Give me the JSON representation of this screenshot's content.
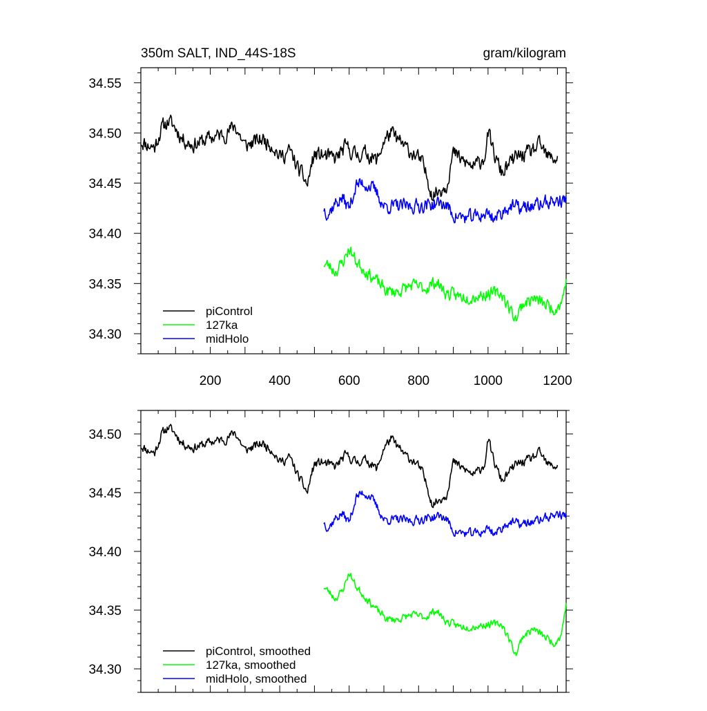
{
  "chart_data": [
    {
      "type": "line",
      "title": "350m SALT, IND_44S-18S",
      "units": "gram/kilogram",
      "xlim": [
        0,
        1225
      ],
      "ylim": [
        34.28,
        34.565
      ],
      "x_ticks": [
        200,
        400,
        600,
        800,
        1000,
        1200
      ],
      "x_tick_labels": [
        "200",
        "400",
        "600",
        "800",
        "1000",
        "1200"
      ],
      "y_ticks": [
        34.3,
        34.35,
        34.4,
        34.45,
        34.5,
        34.55
      ],
      "y_tick_labels": [
        "34.30",
        "34.35",
        "34.40",
        "34.45",
        "34.50",
        "34.55"
      ],
      "legend": {
        "position": "bottom-left",
        "entries": [
          "piControl",
          "127ka",
          "midHolo"
        ]
      },
      "series": [
        {
          "name": "piControl",
          "color": "#000000",
          "noise": 0.012,
          "seed": 11,
          "x": [
            0,
            20,
            40,
            60,
            80,
            100,
            120,
            150,
            200,
            250,
            270,
            300,
            350,
            380,
            400,
            430,
            450,
            470,
            480,
            490,
            500,
            520,
            560,
            590,
            620,
            650,
            680,
            700,
            720,
            760,
            790,
            810,
            830,
            840,
            860,
            880,
            900,
            930,
            960,
            990,
            1000,
            1020,
            1040,
            1080,
            1120,
            1150,
            1170,
            1200
          ],
          "values": [
            34.492,
            34.488,
            34.486,
            34.505,
            34.512,
            34.505,
            34.494,
            34.488,
            34.495,
            34.5,
            34.508,
            34.487,
            34.494,
            34.488,
            34.476,
            34.482,
            34.466,
            34.455,
            34.448,
            34.466,
            34.478,
            34.478,
            34.474,
            34.486,
            34.478,
            34.48,
            34.472,
            34.492,
            34.5,
            34.486,
            34.478,
            34.47,
            34.45,
            34.438,
            34.443,
            34.448,
            34.48,
            34.471,
            34.466,
            34.476,
            34.5,
            34.476,
            34.46,
            34.476,
            34.48,
            34.488,
            34.476,
            34.474
          ]
        },
        {
          "name": "127ka",
          "color": "#00ff00",
          "noise": 0.01,
          "seed": 23,
          "x": [
            527,
            540,
            560,
            580,
            600,
            620,
            650,
            680,
            710,
            740,
            780,
            820,
            850,
            880,
            920,
            960,
            1000,
            1040,
            1060,
            1080,
            1100,
            1130,
            1160,
            1190,
            1210,
            1225
          ],
          "values": [
            34.37,
            34.368,
            34.362,
            34.37,
            34.385,
            34.372,
            34.362,
            34.352,
            34.342,
            34.342,
            34.348,
            34.345,
            34.352,
            34.34,
            34.337,
            34.337,
            34.34,
            34.34,
            34.326,
            34.315,
            34.33,
            34.335,
            34.33,
            34.325,
            34.33,
            34.352
          ]
        },
        {
          "name": "midHolo",
          "color": "#0000ff",
          "noise": 0.011,
          "seed": 37,
          "x": [
            527,
            540,
            560,
            580,
            600,
            620,
            640,
            660,
            680,
            700,
            740,
            780,
            820,
            860,
            880,
            900,
            940,
            980,
            1000,
            1020,
            1060,
            1100,
            1140,
            1180,
            1200,
            1225
          ],
          "values": [
            34.425,
            34.42,
            34.43,
            34.435,
            34.425,
            34.448,
            34.45,
            34.447,
            34.44,
            34.427,
            34.427,
            34.427,
            34.428,
            34.43,
            34.428,
            34.418,
            34.415,
            34.418,
            34.42,
            34.415,
            34.427,
            34.425,
            34.428,
            34.432,
            34.432,
            34.433
          ]
        }
      ]
    },
    {
      "type": "line",
      "xlim": [
        0,
        1225
      ],
      "ylim": [
        34.28,
        34.52
      ],
      "x_ticks": [
        200,
        400,
        600,
        800,
        1000,
        1200
      ],
      "y_ticks": [
        34.3,
        34.35,
        34.4,
        34.45,
        34.5
      ],
      "y_tick_labels": [
        "34.30",
        "34.35",
        "34.40",
        "34.45",
        "34.50"
      ],
      "legend": {
        "position": "bottom-left",
        "entries": [
          "piControl, smoothed",
          "127ka, smoothed",
          "midHolo, smoothed"
        ]
      },
      "series": [
        {
          "name": "piControl, smoothed",
          "color": "#000000",
          "noise": 0.006,
          "seed": 11,
          "x": [
            0,
            20,
            40,
            60,
            80,
            100,
            120,
            150,
            200,
            250,
            270,
            300,
            350,
            380,
            400,
            430,
            450,
            470,
            480,
            490,
            500,
            520,
            560,
            590,
            620,
            650,
            680,
            700,
            720,
            760,
            790,
            810,
            830,
            840,
            860,
            880,
            900,
            930,
            960,
            990,
            1000,
            1020,
            1040,
            1080,
            1120,
            1150,
            1170,
            1200
          ],
          "values": [
            34.49,
            34.486,
            34.484,
            34.5,
            34.506,
            34.5,
            34.492,
            34.488,
            34.493,
            34.496,
            34.502,
            34.486,
            34.492,
            34.486,
            34.476,
            34.48,
            34.466,
            34.455,
            34.45,
            34.464,
            34.474,
            34.476,
            34.472,
            34.482,
            34.476,
            34.478,
            34.47,
            34.488,
            34.496,
            34.482,
            34.476,
            34.468,
            34.45,
            34.44,
            34.444,
            34.448,
            34.476,
            34.47,
            34.465,
            34.474,
            34.495,
            34.474,
            34.46,
            34.474,
            34.478,
            34.484,
            34.474,
            34.472
          ]
        },
        {
          "name": "127ka, smoothed",
          "color": "#00ff00",
          "noise": 0.005,
          "seed": 23,
          "x": [
            527,
            540,
            560,
            580,
            600,
            620,
            650,
            680,
            710,
            740,
            780,
            820,
            850,
            880,
            920,
            960,
            1000,
            1040,
            1060,
            1080,
            1100,
            1130,
            1160,
            1190,
            1210,
            1225
          ],
          "values": [
            34.37,
            34.366,
            34.36,
            34.366,
            34.382,
            34.37,
            34.36,
            34.35,
            34.342,
            34.342,
            34.346,
            34.344,
            34.35,
            34.34,
            34.336,
            34.336,
            34.338,
            34.338,
            34.326,
            34.312,
            34.328,
            34.334,
            34.328,
            34.322,
            34.328,
            34.355
          ]
        },
        {
          "name": "midHolo, smoothed",
          "color": "#0000ff",
          "noise": 0.006,
          "seed": 37,
          "x": [
            527,
            540,
            560,
            580,
            600,
            620,
            640,
            660,
            680,
            700,
            740,
            780,
            820,
            860,
            880,
            900,
            940,
            980,
            1000,
            1020,
            1060,
            1100,
            1140,
            1180,
            1200,
            1225
          ],
          "values": [
            34.425,
            34.42,
            34.428,
            34.432,
            34.425,
            34.446,
            34.45,
            34.447,
            34.438,
            34.427,
            34.427,
            34.426,
            34.428,
            34.43,
            34.428,
            34.417,
            34.415,
            34.416,
            34.42,
            34.415,
            34.425,
            34.423,
            34.426,
            34.43,
            34.432,
            34.43
          ]
        }
      ]
    }
  ]
}
